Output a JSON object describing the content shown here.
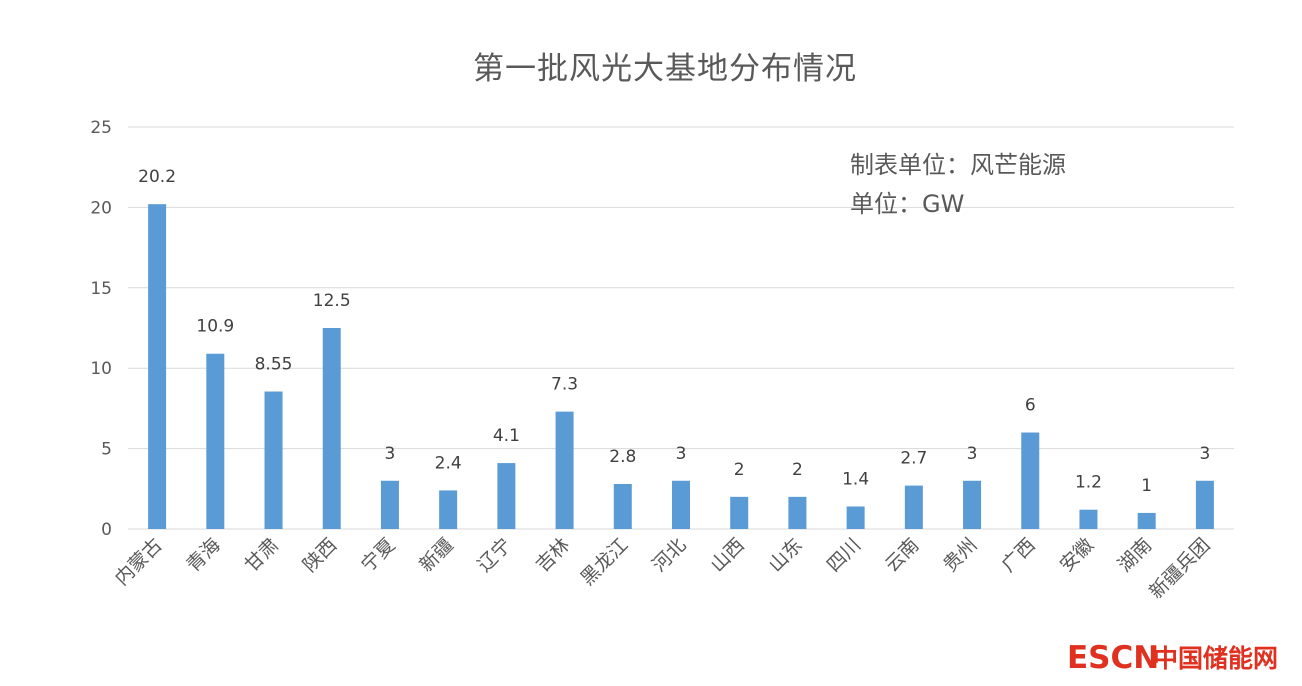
{
  "chart_data": {
    "type": "bar",
    "title": "第一批风光大基地分布情况",
    "categories": [
      "内蒙古",
      "青海",
      "甘肃",
      "陕西",
      "宁夏",
      "新疆",
      "辽宁",
      "吉林",
      "黑龙江",
      "河北",
      "山西",
      "山东",
      "四川",
      "云南",
      "贵州",
      "广西",
      "安徽",
      "湖南",
      "新疆兵团"
    ],
    "values": [
      20.2,
      10.9,
      8.55,
      12.5,
      3,
      2.4,
      4.1,
      7.3,
      2.8,
      3,
      2,
      2,
      1.4,
      2.7,
      3,
      6,
      1.2,
      1,
      3
    ],
    "value_labels": [
      "20.2",
      "10.9",
      "8.55",
      "12.5",
      "3",
      "2.4",
      "4.1",
      "7.3",
      "2.8",
      "3",
      "2",
      "2",
      "1.4",
      "2.7",
      "3",
      "6",
      "1.2",
      "1",
      "3"
    ],
    "ylim": [
      0,
      25
    ],
    "yticks": [
      "0",
      "5",
      "10",
      "15",
      "20",
      "25"
    ],
    "xlabel": "",
    "ylabel": "",
    "grid": true,
    "bar_color": "#5b9bd5",
    "annotations": [
      "制表单位：风芒能源",
      "单位：GW"
    ]
  },
  "watermark": {
    "latin": "ESCN",
    "chinese": "中国储能网",
    "color": "#e03020"
  }
}
